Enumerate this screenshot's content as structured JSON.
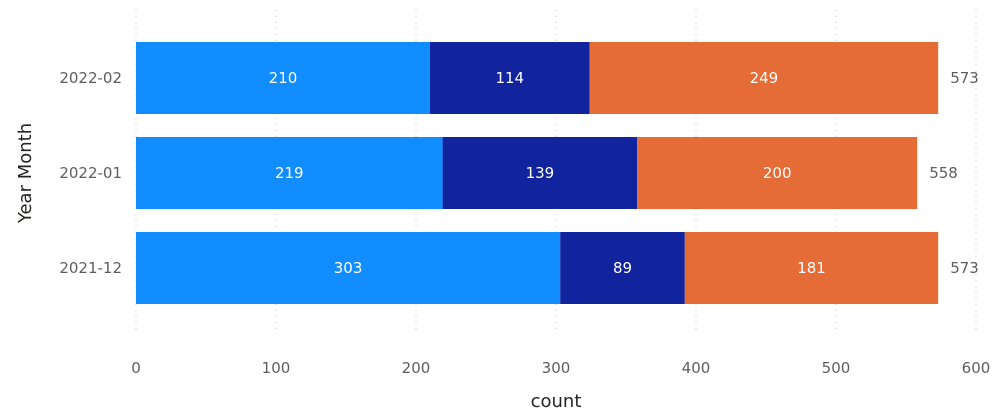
{
  "chart_data": {
    "type": "bar",
    "orientation": "horizontal",
    "stacked": true,
    "title": "",
    "xlabel": "count",
    "ylabel": "Year Month",
    "xlim": [
      0,
      600
    ],
    "x_ticks": [
      "0",
      "100",
      "200",
      "300",
      "400",
      "500",
      "600"
    ],
    "grid": true,
    "legend": "none",
    "categories": [
      "2022-02",
      "2022-01",
      "2021-12"
    ],
    "series": [
      {
        "color": "#118DFF",
        "values": [
          210,
          219,
          303
        ]
      },
      {
        "color": "#12239E",
        "values": [
          114,
          139,
          89
        ]
      },
      {
        "color": "#E66C37",
        "values": [
          249,
          200,
          181
        ]
      }
    ],
    "totals": [
      573,
      558,
      573
    ]
  }
}
